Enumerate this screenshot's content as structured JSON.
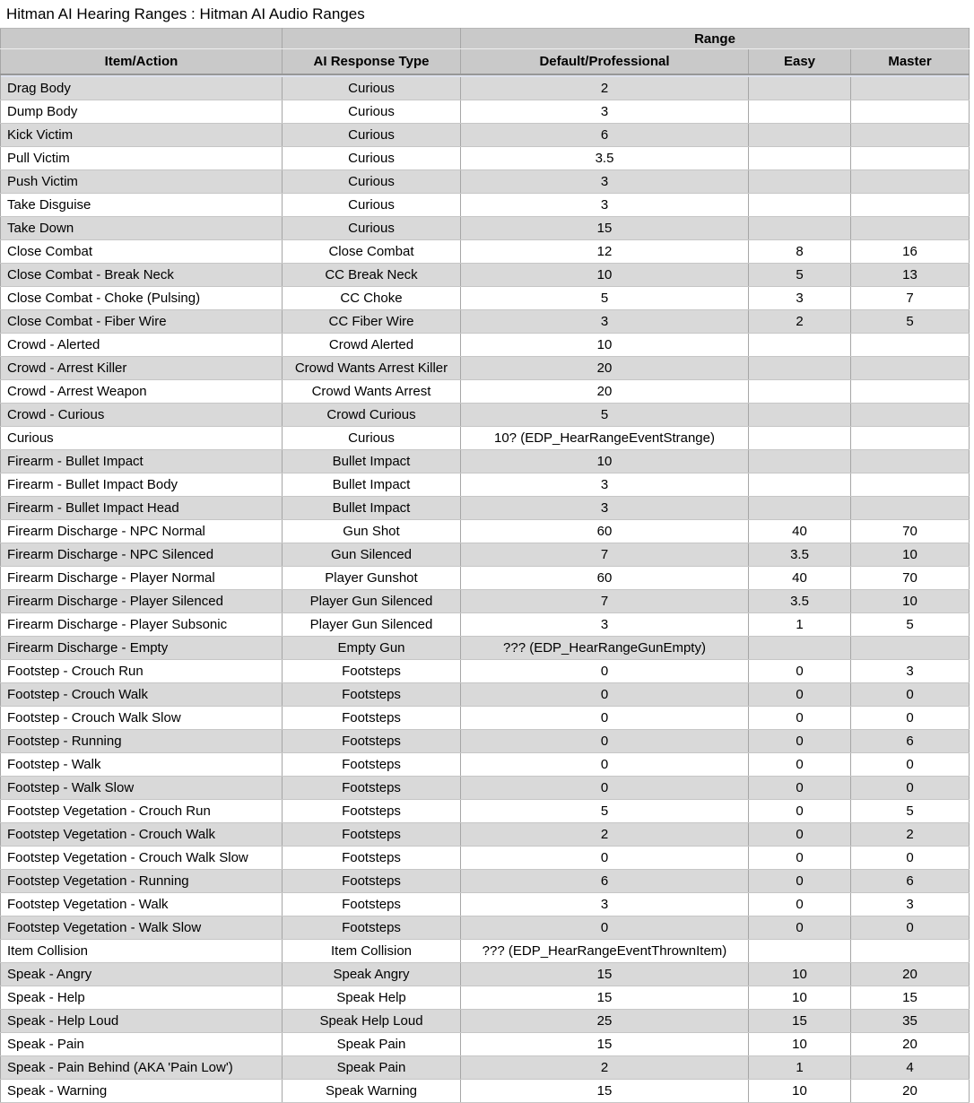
{
  "page": {
    "title": "Hitman AI Hearing Ranges : Hitman AI Audio Ranges"
  },
  "table": {
    "range_group_label": "Range",
    "columns": [
      "Item/Action",
      "AI Response Type",
      "Default/Professional",
      "Easy",
      "Master"
    ],
    "rows": [
      [
        "Drag Body",
        "Curious",
        "2",
        "",
        ""
      ],
      [
        "Dump Body",
        "Curious",
        "3",
        "",
        ""
      ],
      [
        "Kick Victim",
        "Curious",
        "6",
        "",
        ""
      ],
      [
        "Pull Victim",
        "Curious",
        "3.5",
        "",
        ""
      ],
      [
        "Push Victim",
        "Curious",
        "3",
        "",
        ""
      ],
      [
        "Take Disguise",
        "Curious",
        "3",
        "",
        ""
      ],
      [
        "Take Down",
        "Curious",
        "15",
        "",
        ""
      ],
      [
        "Close Combat",
        "Close Combat",
        "12",
        "8",
        "16"
      ],
      [
        "Close Combat - Break Neck",
        "CC Break Neck",
        "10",
        "5",
        "13"
      ],
      [
        "Close Combat - Choke (Pulsing)",
        "CC Choke",
        "5",
        "3",
        "7"
      ],
      [
        "Close Combat - Fiber Wire",
        "CC Fiber Wire",
        "3",
        "2",
        "5"
      ],
      [
        "Crowd - Alerted",
        "Crowd Alerted",
        "10",
        "",
        ""
      ],
      [
        "Crowd - Arrest Killer",
        "Crowd Wants Arrest Killer",
        "20",
        "",
        ""
      ],
      [
        "Crowd - Arrest Weapon",
        "Crowd Wants Arrest",
        "20",
        "",
        ""
      ],
      [
        "Crowd - Curious",
        "Crowd Curious",
        "5",
        "",
        ""
      ],
      [
        "Curious",
        "Curious",
        "10? (EDP_HearRangeEventStrange)",
        "",
        ""
      ],
      [
        "Firearm - Bullet Impact",
        "Bullet Impact",
        "10",
        "",
        ""
      ],
      [
        "Firearm - Bullet Impact Body",
        "Bullet Impact",
        "3",
        "",
        ""
      ],
      [
        "Firearm - Bullet Impact Head",
        "Bullet Impact",
        "3",
        "",
        ""
      ],
      [
        "Firearm Discharge - NPC Normal",
        "Gun Shot",
        "60",
        "40",
        "70"
      ],
      [
        "Firearm Discharge - NPC Silenced",
        "Gun Silenced",
        "7",
        "3.5",
        "10"
      ],
      [
        "Firearm Discharge - Player Normal",
        "Player Gunshot",
        "60",
        "40",
        "70"
      ],
      [
        "Firearm Discharge - Player Silenced",
        "Player Gun Silenced",
        "7",
        "3.5",
        "10"
      ],
      [
        "Firearm Discharge - Player Subsonic",
        "Player Gun Silenced",
        "3",
        "1",
        "5"
      ],
      [
        "Firearm Discharge - Empty",
        "Empty Gun",
        "??? (EDP_HearRangeGunEmpty)",
        "",
        ""
      ],
      [
        "Footstep - Crouch Run",
        "Footsteps",
        "0",
        "0",
        "3"
      ],
      [
        "Footstep - Crouch Walk",
        "Footsteps",
        "0",
        "0",
        "0"
      ],
      [
        "Footstep - Crouch Walk Slow",
        "Footsteps",
        "0",
        "0",
        "0"
      ],
      [
        "Footstep - Running",
        "Footsteps",
        "0",
        "0",
        "6"
      ],
      [
        "Footstep - Walk",
        "Footsteps",
        "0",
        "0",
        "0"
      ],
      [
        "Footstep - Walk Slow",
        "Footsteps",
        "0",
        "0",
        "0"
      ],
      [
        "Footstep Vegetation - Crouch Run",
        "Footsteps",
        "5",
        "0",
        "5"
      ],
      [
        "Footstep Vegetation - Crouch Walk",
        "Footsteps",
        "2",
        "0",
        "2"
      ],
      [
        "Footstep Vegetation - Crouch Walk Slow",
        "Footsteps",
        "0",
        "0",
        "0"
      ],
      [
        "Footstep Vegetation - Running",
        "Footsteps",
        "6",
        "0",
        "6"
      ],
      [
        "Footstep Vegetation - Walk",
        "Footsteps",
        "3",
        "0",
        "3"
      ],
      [
        "Footstep Vegetation - Walk Slow",
        "Footsteps",
        "0",
        "0",
        "0"
      ],
      [
        "Item Collision",
        "Item Collision",
        "??? (EDP_HearRangeEventThrownItem)",
        "",
        ""
      ],
      [
        "Speak - Angry",
        "Speak Angry",
        "15",
        "10",
        "20"
      ],
      [
        "Speak - Help",
        "Speak Help",
        "15",
        "10",
        "15"
      ],
      [
        "Speak - Help Loud",
        "Speak Help Loud",
        "25",
        "15",
        "35"
      ],
      [
        "Speak - Pain",
        "Speak Pain",
        "15",
        "10",
        "20"
      ],
      [
        "Speak - Pain Behind (AKA 'Pain Low')",
        "Speak Pain",
        "2",
        "1",
        "4"
      ],
      [
        "Speak - Warning",
        "Speak Warning",
        "15",
        "10",
        "20"
      ]
    ]
  },
  "colors": {
    "header_bg": "#c9c9c9",
    "row_alt_bg": "#d9d9d9",
    "row_bg": "#ffffff",
    "v_border": "#a6a6a6",
    "h_border": "#c6c6c6",
    "head_sep": "#979797",
    "shadow_strip": "#dee2ee",
    "text": "#000000"
  }
}
